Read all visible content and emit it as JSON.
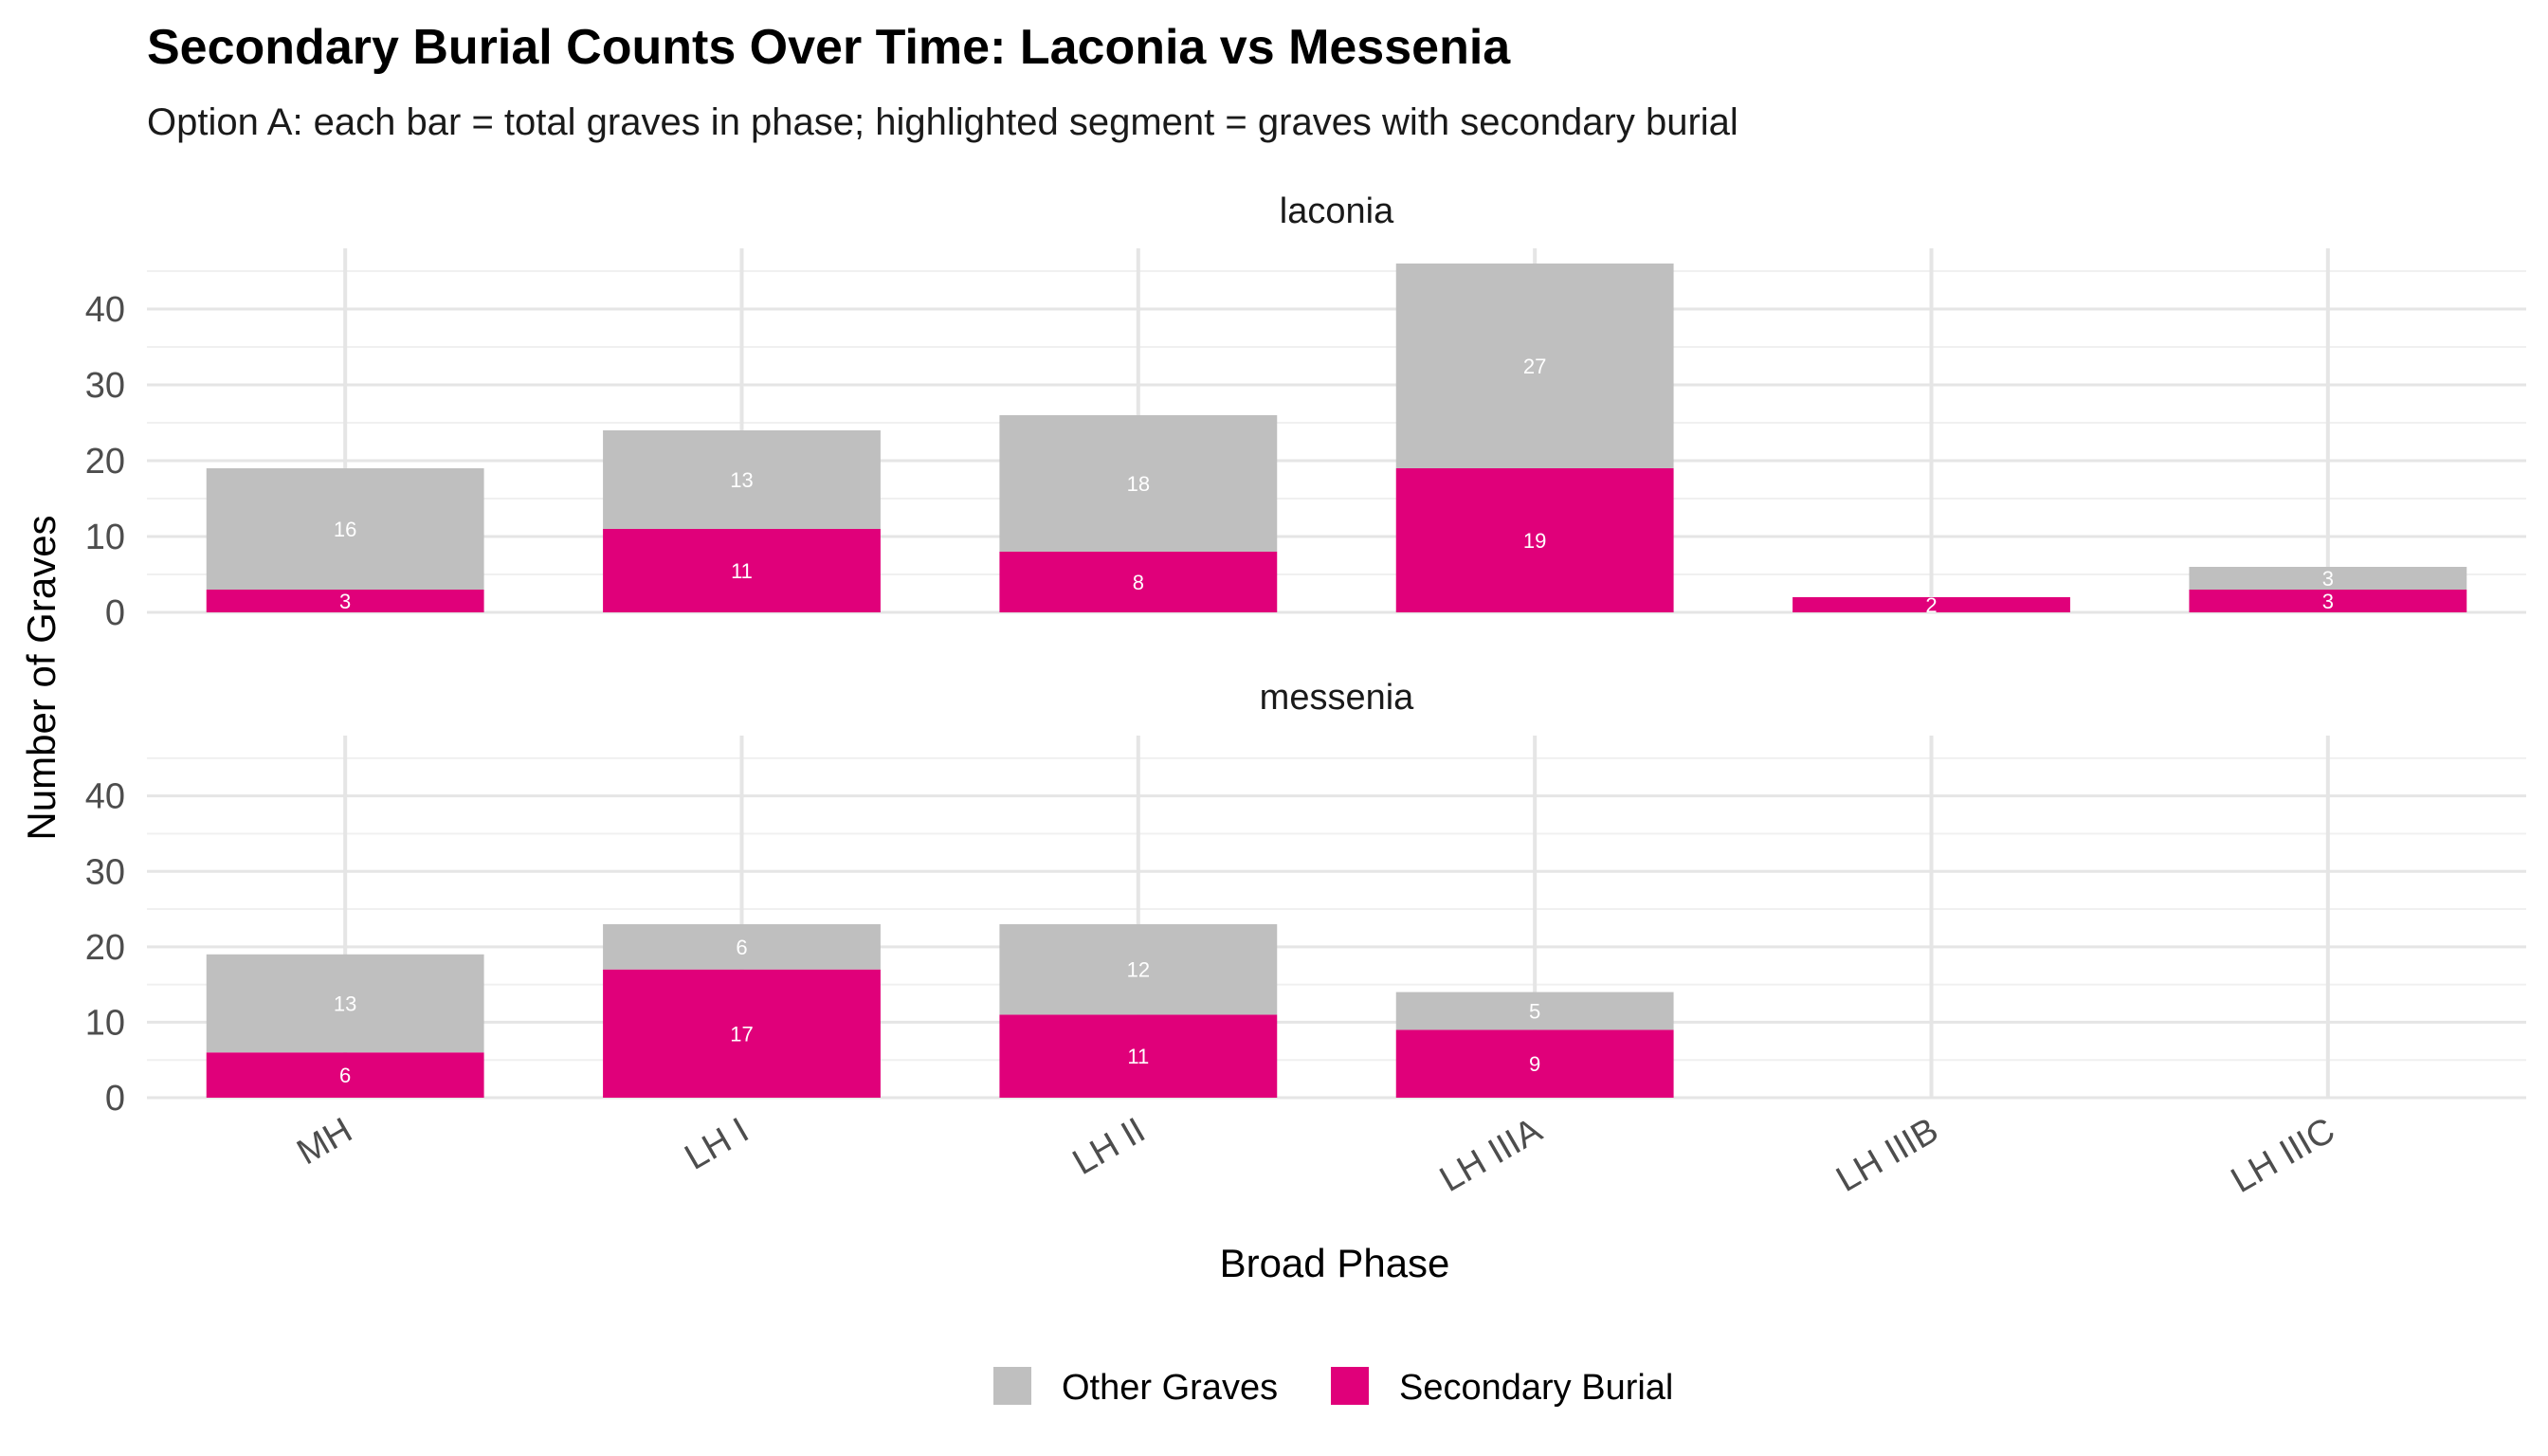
{
  "chart_data": {
    "type": "bar",
    "stacked": true,
    "title": "Secondary Burial Counts Over Time: Laconia vs Messenia",
    "subtitle": "Option A: each bar = total graves in phase; highlighted segment = graves with secondary burial",
    "xlabel": "Broad Phase",
    "ylabel": "Number of Graves",
    "ylim": [
      0,
      48
    ],
    "yticks": [
      "0",
      "10",
      "20",
      "30",
      "40"
    ],
    "categories": [
      "MH",
      "LH I",
      "LH II",
      "LH IIIA",
      "LH IIIB",
      "LH IIIC"
    ],
    "colors": {
      "Other Graves": "#bfbfbf",
      "Secondary Burial": "#e0007a"
    },
    "legend": {
      "position": "bottom",
      "entries": [
        "Other Graves",
        "Secondary Burial"
      ]
    },
    "panels": [
      {
        "name": "laconia",
        "series": [
          {
            "name": "Secondary Burial",
            "values": [
              3,
              11,
              8,
              19,
              2,
              3
            ]
          },
          {
            "name": "Other Graves",
            "values": [
              16,
              13,
              18,
              27,
              0,
              3
            ]
          }
        ]
      },
      {
        "name": "messenia",
        "series": [
          {
            "name": "Secondary Burial",
            "values": [
              6,
              17,
              11,
              9,
              0,
              0
            ]
          },
          {
            "name": "Other Graves",
            "values": [
              13,
              6,
              12,
              5,
              0,
              0
            ]
          }
        ]
      }
    ]
  }
}
